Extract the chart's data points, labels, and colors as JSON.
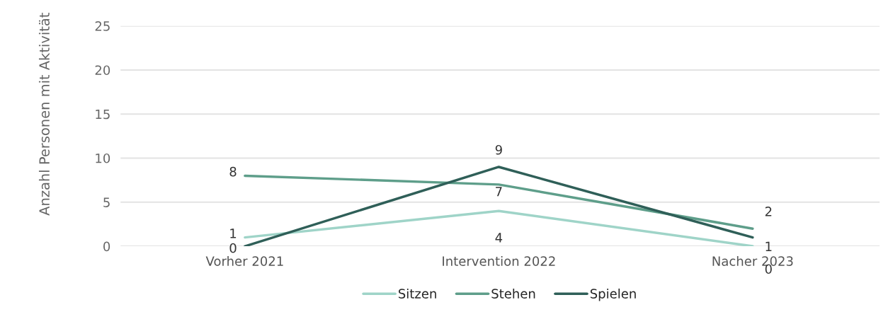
{
  "chart_data": {
    "type": "line",
    "ylabel": "Anzahl Personen mit Aktivität",
    "categories": [
      "Vorher 2021",
      "Intervention 2022",
      "Nacher 2023"
    ],
    "series": [
      {
        "name": "Sitzen",
        "color": "#9fd4c8",
        "values": [
          1,
          4,
          0
        ]
      },
      {
        "name": "Stehen",
        "color": "#5e9e8a",
        "values": [
          8,
          7,
          2
        ]
      },
      {
        "name": "Spielen",
        "color": "#2f5f58",
        "values": [
          0,
          9,
          1
        ]
      }
    ],
    "ylim": [
      0,
      25
    ],
    "yticks": [
      0,
      5,
      10,
      15,
      20,
      25
    ],
    "grid": "y",
    "legend": "bottom",
    "data_labels": true,
    "marker": "none",
    "line_style": "solid"
  }
}
